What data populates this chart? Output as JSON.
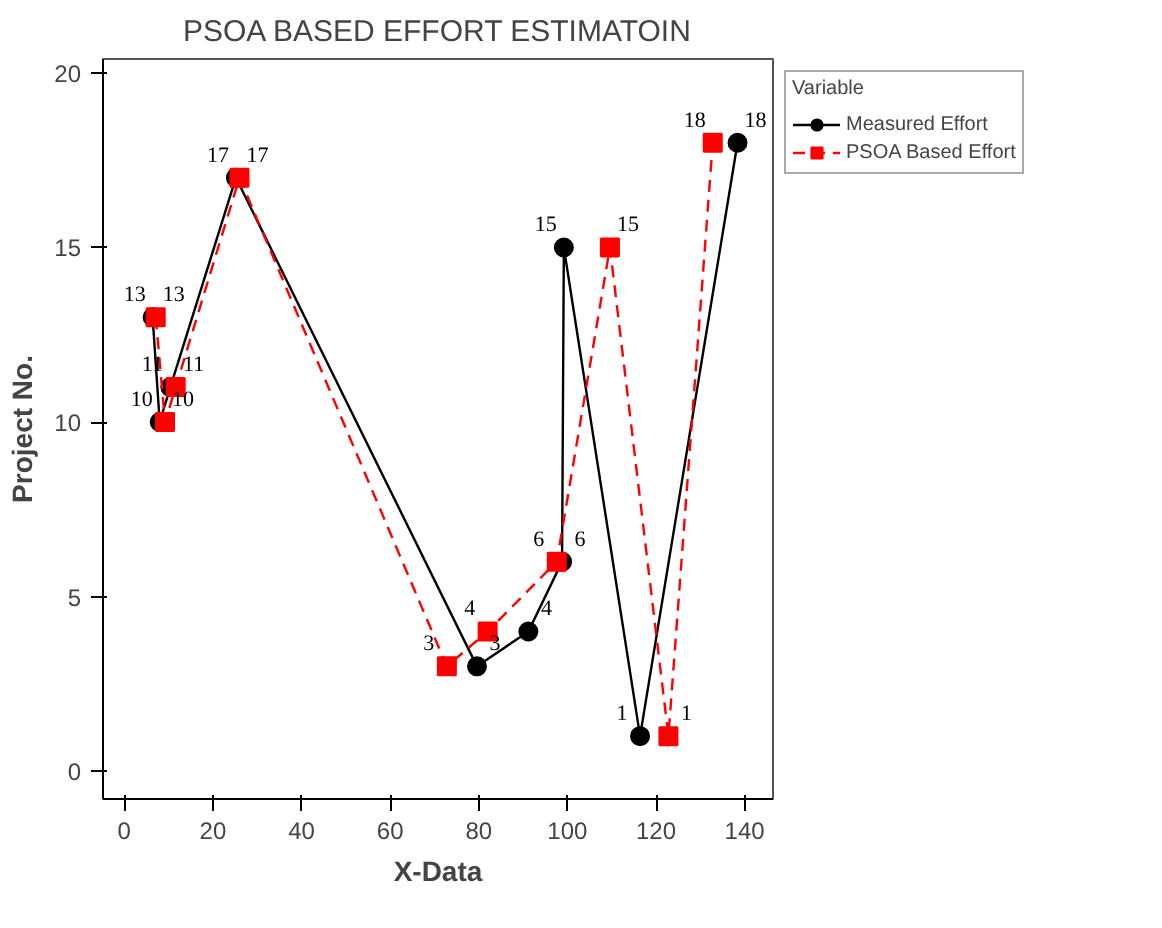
{
  "chart_data": {
    "type": "line",
    "title": "PSOA BASED EFFORT ESTIMATOIN",
    "xlabel": "X-Data",
    "ylabel": "Project No.",
    "legend_title": "Variable",
    "legend": "right",
    "data_labels": true,
    "grid": false,
    "xlim": [
      -4.8,
      146.4
    ],
    "xticks": [
      0,
      20,
      40,
      60,
      80,
      100,
      120,
      140
    ],
    "ylim": [
      -0.8,
      20.4
    ],
    "yticks": [
      0,
      5,
      10,
      15,
      20
    ],
    "series": [
      {
        "name": "Measured Effort",
        "color": "#000000",
        "marker": "circle",
        "line_style": "solid",
        "x": [
          6.4,
          8,
          10.4,
          25.2,
          79.6,
          91.2,
          98.8,
          99.2,
          116.4,
          138.4
        ],
        "values": [
          13,
          10,
          11,
          17,
          3,
          4,
          6,
          15,
          1,
          18
        ]
      },
      {
        "name": "PSOA Based Effort",
        "color": "#ff0000",
        "marker": "square",
        "line_style": "dashed",
        "x": [
          7.1,
          9.2,
          11.6,
          26,
          72.8,
          82,
          97.6,
          109.6,
          122.8,
          132.8
        ],
        "values": [
          13,
          10,
          11,
          17,
          3,
          4,
          6,
          15,
          1,
          18
        ]
      }
    ]
  }
}
